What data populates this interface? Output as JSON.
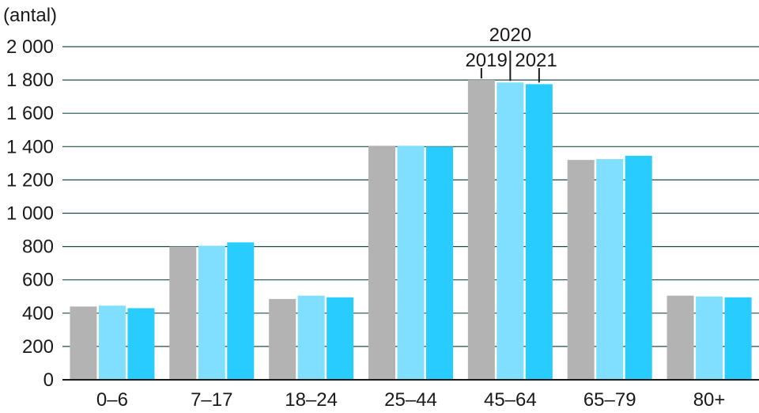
{
  "chart_data": {
    "type": "bar",
    "ylabel": "(antal)",
    "ylim": [
      0,
      2000
    ],
    "yticks": [
      0,
      200,
      400,
      600,
      800,
      1000,
      1200,
      1400,
      1600,
      1800,
      2000
    ],
    "ytick_labels": [
      "0",
      "200",
      "400",
      "600",
      "800",
      "1 000",
      "1 200",
      "1 400",
      "1 600",
      "1 800",
      "2 000"
    ],
    "categories": [
      "0–6",
      "7–17",
      "18–24",
      "25–44",
      "45–64",
      "65–79",
      "80+"
    ],
    "grid": true,
    "legend_placement": "annotation above 45–64 group",
    "series": [
      {
        "name": "2019",
        "color": "#b3b3b3",
        "values": [
          440,
          800,
          485,
          1405,
          1800,
          1320,
          505
        ]
      },
      {
        "name": "2020",
        "color": "#80dfff",
        "values": [
          445,
          805,
          505,
          1405,
          1785,
          1325,
          500
        ]
      },
      {
        "name": "2021",
        "color": "#29ccff",
        "values": [
          430,
          825,
          495,
          1400,
          1775,
          1345,
          495
        ]
      }
    ],
    "gridline_color": "#1f4d4d"
  }
}
